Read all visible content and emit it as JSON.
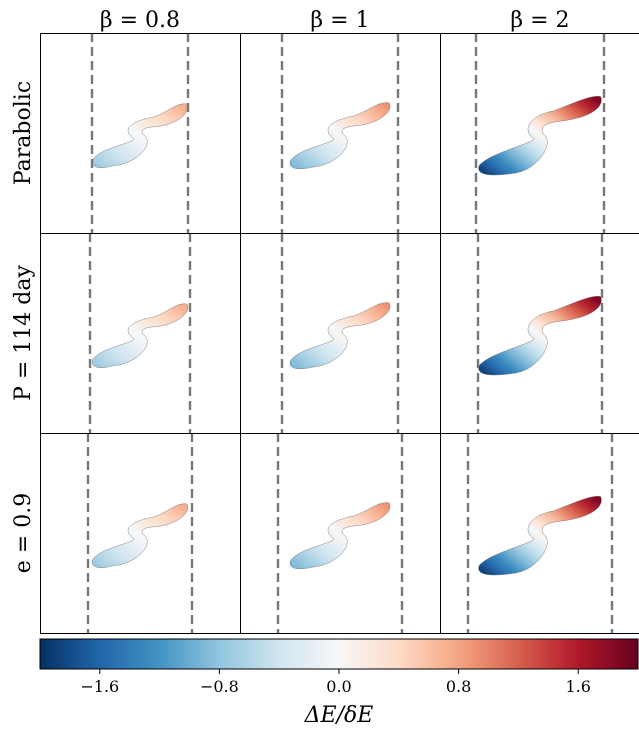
{
  "chart_data": {
    "type": "other",
    "description_free": true,
    "columns": [
      {
        "title": "β = 0.8",
        "beta": 0.8
      },
      {
        "title": "β = 1",
        "beta": 1
      },
      {
        "title": "β = 2",
        "beta": 2
      }
    ],
    "rows": [
      {
        "label": "Parabolic"
      },
      {
        "label": "P = 114 day"
      },
      {
        "label": "e = 0.9"
      }
    ],
    "panels": [
      [
        {
          "amplitude": 0.72,
          "dash_left": 0.26,
          "dash_right": 0.74
        },
        {
          "amplitude": 0.9,
          "dash_left": 0.21,
          "dash_right": 0.79
        },
        {
          "amplitude": 1.85,
          "dash_left": 0.18,
          "dash_right": 0.82
        }
      ],
      [
        {
          "amplitude": 0.72,
          "dash_left": 0.25,
          "dash_right": 0.75
        },
        {
          "amplitude": 0.9,
          "dash_left": 0.21,
          "dash_right": 0.79
        },
        {
          "amplitude": 1.85,
          "dash_left": 0.19,
          "dash_right": 0.81
        }
      ],
      [
        {
          "amplitude": 0.72,
          "dash_left": 0.24,
          "dash_right": 0.76
        },
        {
          "amplitude": 0.9,
          "dash_left": 0.19,
          "dash_right": 0.81
        },
        {
          "amplitude": 1.85,
          "dash_left": 0.14,
          "dash_right": 0.86
        }
      ]
    ],
    "colorbar": {
      "label": "ΔE/δE",
      "range": [
        -2.0,
        2.0
      ],
      "ticks": [
        -1.6,
        -0.8,
        0.0,
        0.8,
        1.6
      ],
      "tick_labels": [
        "−1.6",
        "−0.8",
        "0.0",
        "0.8",
        "1.6"
      ],
      "colormap": "RdBu_r",
      "colors": [
        "#053061",
        "#2166ac",
        "#4393c3",
        "#92c5de",
        "#d1e5f0",
        "#f7f7f7",
        "#fddbc7",
        "#f4a582",
        "#d6604d",
        "#b2182b",
        "#67001f"
      ]
    }
  }
}
